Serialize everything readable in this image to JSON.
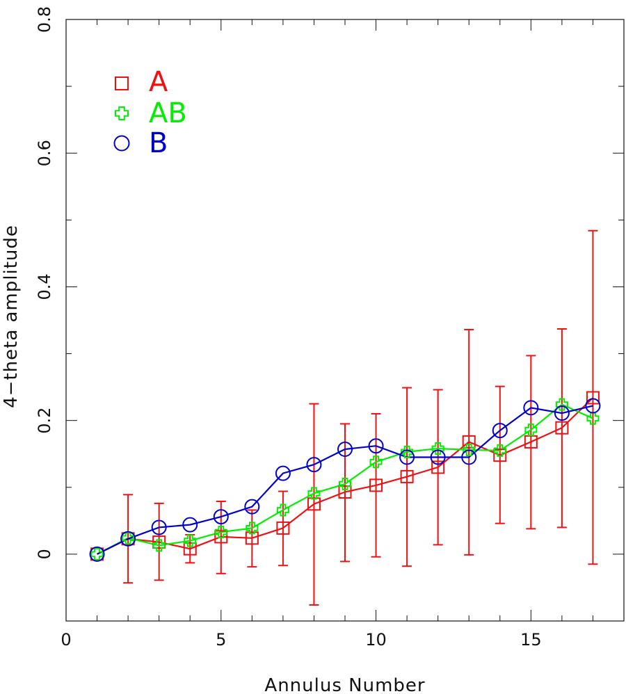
{
  "chart_data": {
    "type": "line",
    "xlabel": "Annulus Number",
    "ylabel": "4−theta amplitude",
    "xlim": [
      0,
      18
    ],
    "ylim": [
      -0.1,
      0.8
    ],
    "x_ticks": [
      0,
      5,
      10,
      15
    ],
    "y_ticks": [
      0,
      0.2,
      0.4,
      0.6,
      0.8
    ],
    "x_tick_labels": [
      "0",
      "5",
      "10",
      "15"
    ],
    "y_tick_labels": [
      "0",
      "0.2",
      "0.4",
      "0.6",
      "0.8"
    ],
    "grid": false,
    "legend_position": "top-left",
    "x": [
      1,
      2,
      3,
      4,
      5,
      6,
      7,
      8,
      9,
      10,
      11,
      12,
      13,
      14,
      15,
      16,
      17
    ],
    "series": [
      {
        "name": "A",
        "color": "#ee1111",
        "marker": "square",
        "values": [
          0.0,
          0.023,
          0.018,
          0.008,
          0.026,
          0.024,
          0.039,
          0.075,
          0.093,
          0.103,
          0.116,
          0.13,
          0.168,
          0.148,
          0.168,
          0.189,
          0.234
        ],
        "error_low": [
          0.0,
          -0.043,
          -0.039,
          -0.013,
          -0.029,
          -0.019,
          -0.017,
          -0.076,
          -0.011,
          -0.004,
          -0.018,
          0.014,
          -0.001,
          0.046,
          0.038,
          0.04,
          -0.015
        ],
        "error_high": [
          0.0,
          0.089,
          0.076,
          0.029,
          0.079,
          0.066,
          0.094,
          0.225,
          0.195,
          0.21,
          0.249,
          0.246,
          0.336,
          0.251,
          0.297,
          0.337,
          0.484
        ]
      },
      {
        "name": "AB",
        "color": "#00ee00",
        "marker": "plus",
        "values": [
          0.0,
          0.024,
          0.013,
          0.02,
          0.033,
          0.039,
          0.066,
          0.091,
          0.105,
          0.138,
          0.153,
          0.158,
          0.156,
          0.155,
          0.186,
          0.224,
          0.203
        ]
      },
      {
        "name": "B",
        "color": "#0000cc",
        "marker": "circle",
        "values": [
          0.0,
          0.023,
          0.04,
          0.044,
          0.056,
          0.071,
          0.121,
          0.134,
          0.157,
          0.162,
          0.145,
          0.145,
          0.145,
          0.185,
          0.219,
          0.211,
          0.222
        ]
      }
    ]
  }
}
